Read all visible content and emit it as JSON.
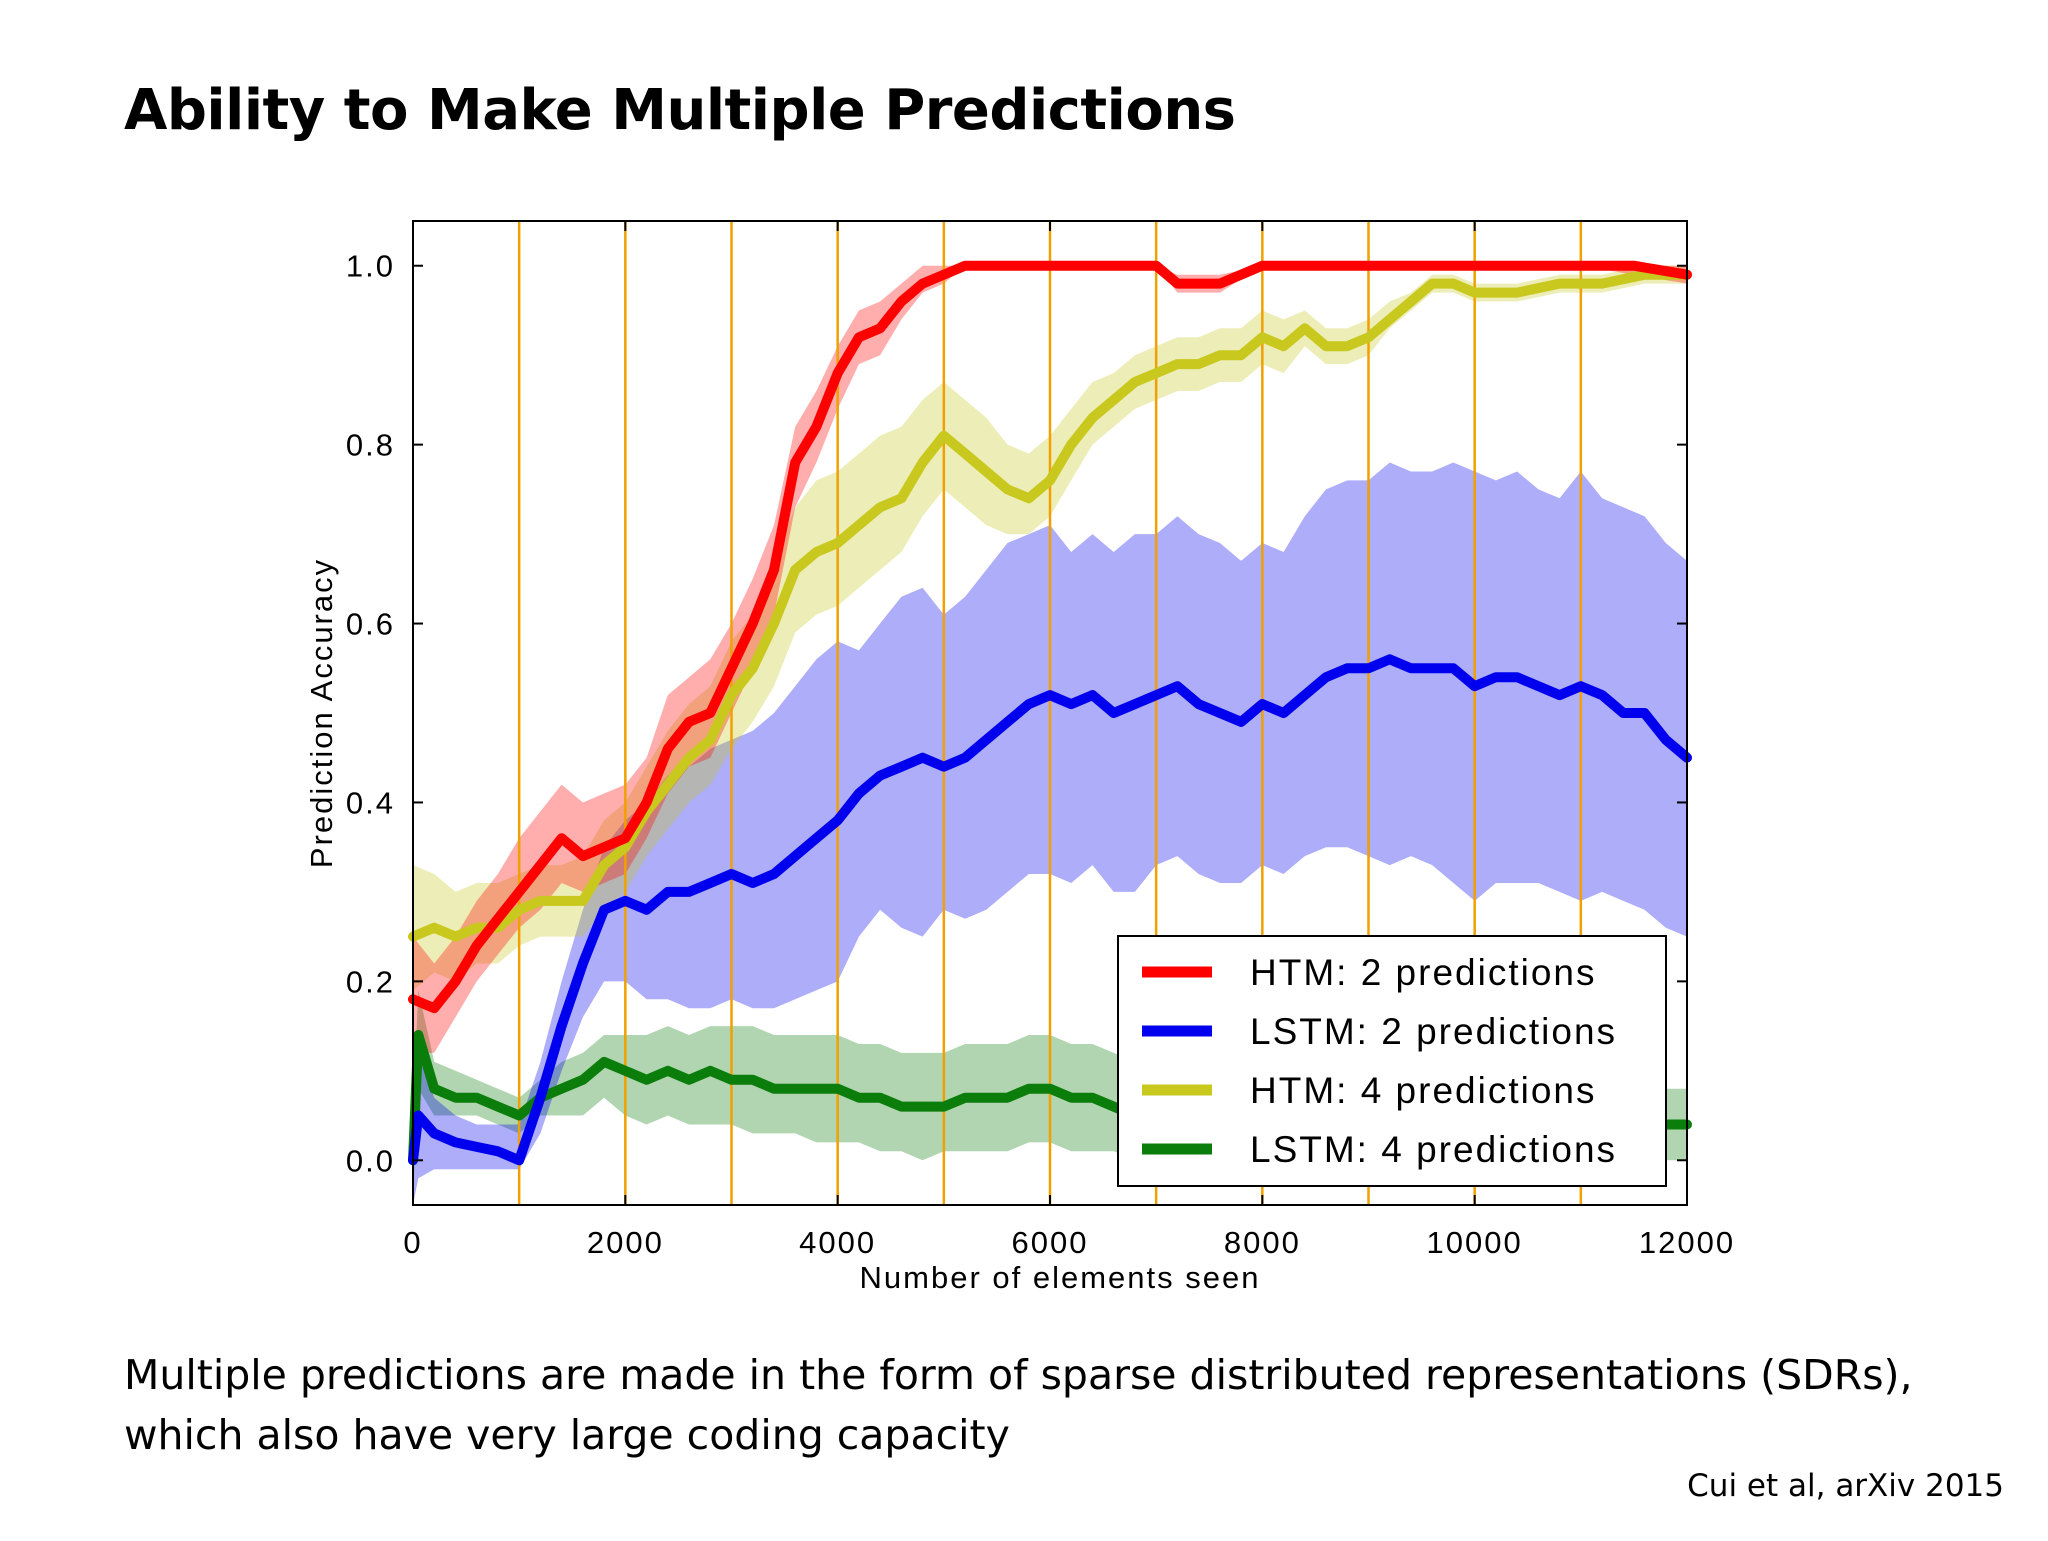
{
  "slide": {
    "title": "Ability to Make Multiple Predictions",
    "caption": "Multiple predictions are made in the form of sparse distributed representations (SDRs), which also have very large coding capacity",
    "citation": "Cui et al, arXiv 2015"
  },
  "colors": {
    "htm2": "#ff0000",
    "lstm2": "#0000ee",
    "htm4": "#c8c81e",
    "lstm4": "#0a7d0a",
    "divider": "#f0a000"
  },
  "chart_data": {
    "type": "line",
    "title": "",
    "xlabel": "Number of elements seen",
    "ylabel": "Prediction Accuracy",
    "xlim": [
      0,
      12000
    ],
    "ylim": [
      -0.05,
      1.05
    ],
    "xticks": [
      0,
      2000,
      4000,
      6000,
      8000,
      10000,
      12000
    ],
    "yticks": [
      0.0,
      0.2,
      0.4,
      0.6,
      0.8,
      1.0
    ],
    "xtick_labels": [
      "0",
      "2000",
      "4000",
      "6000",
      "8000",
      "10000",
      "12000"
    ],
    "ytick_labels": [
      "0.0",
      "0.2",
      "0.4",
      "0.6",
      "0.8",
      "1.0"
    ],
    "vertical_lines_x": [
      1000,
      2000,
      3000,
      4000,
      5000,
      6000,
      7000,
      8000,
      9000,
      10000,
      11000
    ],
    "grid": false,
    "legend_position": "lower-right",
    "series": [
      {
        "name": "HTM: 2 predictions",
        "color": "#ff0000",
        "x": [
          0,
          200,
          400,
          600,
          800,
          1000,
          1200,
          1400,
          1600,
          1800,
          2000,
          2200,
          2400,
          2600,
          2800,
          3000,
          3200,
          3400,
          3600,
          3800,
          4000,
          4200,
          4400,
          4600,
          4800,
          5000,
          5200,
          5400,
          6000,
          7000,
          7200,
          7600,
          8000,
          9000,
          10000,
          11000,
          11500,
          12000
        ],
        "y": [
          0.18,
          0.17,
          0.2,
          0.24,
          0.27,
          0.3,
          0.33,
          0.36,
          0.34,
          0.35,
          0.36,
          0.4,
          0.46,
          0.49,
          0.5,
          0.55,
          0.6,
          0.66,
          0.78,
          0.82,
          0.88,
          0.92,
          0.93,
          0.96,
          0.98,
          0.99,
          1.0,
          1.0,
          1.0,
          1.0,
          0.98,
          0.98,
          1.0,
          1.0,
          1.0,
          1.0,
          1.0,
          0.99
        ],
        "lower": [
          0.12,
          0.12,
          0.16,
          0.2,
          0.23,
          0.26,
          0.28,
          0.31,
          0.3,
          0.31,
          0.32,
          0.36,
          0.41,
          0.44,
          0.45,
          0.5,
          0.55,
          0.61,
          0.73,
          0.78,
          0.84,
          0.89,
          0.9,
          0.94,
          0.97,
          0.98,
          1.0,
          1.0,
          1.0,
          1.0,
          0.97,
          0.97,
          1.0,
          1.0,
          1.0,
          1.0,
          0.99,
          0.98
        ],
        "upper": [
          0.25,
          0.22,
          0.25,
          0.29,
          0.32,
          0.36,
          0.39,
          0.42,
          0.4,
          0.41,
          0.42,
          0.45,
          0.52,
          0.54,
          0.56,
          0.6,
          0.65,
          0.71,
          0.82,
          0.86,
          0.91,
          0.95,
          0.96,
          0.98,
          1.0,
          1.0,
          1.0,
          1.0,
          1.0,
          1.0,
          0.99,
          0.99,
          1.0,
          1.0,
          1.0,
          1.0,
          1.0,
          1.0
        ]
      },
      {
        "name": "LSTM: 2 predictions",
        "color": "#0000ee",
        "x": [
          0,
          50,
          200,
          400,
          600,
          800,
          1000,
          1200,
          1400,
          1600,
          1800,
          2000,
          2200,
          2400,
          2600,
          2800,
          3000,
          3200,
          3400,
          3600,
          3800,
          4000,
          4200,
          4400,
          4600,
          4800,
          5000,
          5200,
          5400,
          5600,
          5800,
          6000,
          6200,
          6400,
          6600,
          6800,
          7000,
          7200,
          7400,
          7600,
          7800,
          8000,
          8200,
          8400,
          8600,
          8800,
          9000,
          9200,
          9400,
          9600,
          9800,
          10000,
          10200,
          10400,
          10600,
          10800,
          11000,
          11200,
          11400,
          11600,
          11800,
          12000
        ],
        "y": [
          0.0,
          0.05,
          0.03,
          0.02,
          0.015,
          0.01,
          0.0,
          0.07,
          0.15,
          0.22,
          0.28,
          0.29,
          0.28,
          0.3,
          0.3,
          0.31,
          0.32,
          0.31,
          0.32,
          0.34,
          0.36,
          0.38,
          0.41,
          0.43,
          0.44,
          0.45,
          0.44,
          0.45,
          0.47,
          0.49,
          0.51,
          0.52,
          0.51,
          0.52,
          0.5,
          0.51,
          0.52,
          0.53,
          0.51,
          0.5,
          0.49,
          0.51,
          0.5,
          0.52,
          0.54,
          0.55,
          0.55,
          0.56,
          0.55,
          0.55,
          0.55,
          0.53,
          0.54,
          0.54,
          0.53,
          0.52,
          0.53,
          0.52,
          0.5,
          0.5,
          0.47,
          0.45
        ],
        "lower": [
          -0.05,
          -0.02,
          -0.01,
          -0.01,
          -0.01,
          -0.01,
          -0.01,
          0.03,
          0.1,
          0.16,
          0.2,
          0.2,
          0.18,
          0.18,
          0.17,
          0.17,
          0.18,
          0.17,
          0.17,
          0.18,
          0.19,
          0.2,
          0.25,
          0.28,
          0.26,
          0.25,
          0.28,
          0.27,
          0.28,
          0.3,
          0.32,
          0.32,
          0.31,
          0.33,
          0.3,
          0.3,
          0.33,
          0.34,
          0.32,
          0.31,
          0.31,
          0.33,
          0.32,
          0.34,
          0.35,
          0.35,
          0.34,
          0.33,
          0.34,
          0.33,
          0.31,
          0.29,
          0.31,
          0.31,
          0.31,
          0.3,
          0.29,
          0.3,
          0.29,
          0.28,
          0.26,
          0.25
        ],
        "upper": [
          0.1,
          0.12,
          0.07,
          0.05,
          0.04,
          0.04,
          0.04,
          0.11,
          0.2,
          0.28,
          0.35,
          0.38,
          0.4,
          0.43,
          0.44,
          0.46,
          0.47,
          0.48,
          0.5,
          0.53,
          0.56,
          0.58,
          0.57,
          0.6,
          0.63,
          0.64,
          0.61,
          0.63,
          0.66,
          0.69,
          0.7,
          0.71,
          0.68,
          0.7,
          0.68,
          0.7,
          0.7,
          0.72,
          0.7,
          0.69,
          0.67,
          0.69,
          0.68,
          0.72,
          0.75,
          0.76,
          0.76,
          0.78,
          0.77,
          0.77,
          0.78,
          0.77,
          0.76,
          0.77,
          0.75,
          0.74,
          0.77,
          0.74,
          0.73,
          0.72,
          0.69,
          0.67
        ]
      },
      {
        "name": "HTM: 4 predictions",
        "color": "#c8c81e",
        "x": [
          0,
          200,
          400,
          600,
          800,
          1000,
          1200,
          1400,
          1600,
          1800,
          2000,
          2200,
          2400,
          2600,
          2800,
          3000,
          3200,
          3400,
          3600,
          3800,
          4000,
          4200,
          4400,
          4600,
          4800,
          5000,
          5200,
          5400,
          5600,
          5800,
          6000,
          6200,
          6400,
          6600,
          6800,
          7000,
          7200,
          7400,
          7600,
          7800,
          8000,
          8200,
          8400,
          8600,
          8800,
          9000,
          9200,
          9400,
          9600,
          9800,
          10000,
          10400,
          10800,
          11200,
          11600,
          12000
        ],
        "y": [
          0.25,
          0.26,
          0.25,
          0.26,
          0.26,
          0.28,
          0.29,
          0.29,
          0.29,
          0.33,
          0.35,
          0.39,
          0.42,
          0.45,
          0.47,
          0.52,
          0.55,
          0.6,
          0.66,
          0.68,
          0.69,
          0.71,
          0.73,
          0.74,
          0.78,
          0.81,
          0.79,
          0.77,
          0.75,
          0.74,
          0.76,
          0.8,
          0.83,
          0.85,
          0.87,
          0.88,
          0.89,
          0.89,
          0.9,
          0.9,
          0.92,
          0.91,
          0.93,
          0.91,
          0.91,
          0.92,
          0.94,
          0.96,
          0.98,
          0.98,
          0.97,
          0.97,
          0.98,
          0.98,
          0.99,
          0.99
        ],
        "lower": [
          0.19,
          0.21,
          0.2,
          0.22,
          0.22,
          0.24,
          0.25,
          0.25,
          0.25,
          0.28,
          0.3,
          0.34,
          0.37,
          0.4,
          0.42,
          0.46,
          0.49,
          0.53,
          0.59,
          0.61,
          0.62,
          0.64,
          0.66,
          0.68,
          0.72,
          0.75,
          0.73,
          0.71,
          0.7,
          0.7,
          0.72,
          0.76,
          0.8,
          0.82,
          0.84,
          0.85,
          0.86,
          0.86,
          0.87,
          0.87,
          0.89,
          0.88,
          0.91,
          0.89,
          0.89,
          0.9,
          0.93,
          0.95,
          0.97,
          0.97,
          0.96,
          0.96,
          0.97,
          0.97,
          0.98,
          0.98
        ],
        "upper": [
          0.33,
          0.32,
          0.3,
          0.31,
          0.31,
          0.32,
          0.33,
          0.33,
          0.34,
          0.38,
          0.4,
          0.44,
          0.48,
          0.51,
          0.53,
          0.58,
          0.61,
          0.67,
          0.73,
          0.76,
          0.77,
          0.79,
          0.81,
          0.82,
          0.85,
          0.87,
          0.85,
          0.83,
          0.8,
          0.79,
          0.81,
          0.84,
          0.87,
          0.88,
          0.9,
          0.91,
          0.92,
          0.92,
          0.93,
          0.93,
          0.95,
          0.94,
          0.95,
          0.93,
          0.93,
          0.94,
          0.96,
          0.97,
          0.99,
          0.99,
          0.98,
          0.98,
          0.99,
          0.99,
          1.0,
          1.0
        ]
      },
      {
        "name": "LSTM: 4 predictions",
        "color": "#0a7d0a",
        "x": [
          0,
          50,
          200,
          400,
          600,
          800,
          1000,
          1200,
          1400,
          1600,
          1800,
          2000,
          2200,
          2400,
          2600,
          2800,
          3000,
          3200,
          3400,
          3600,
          3800,
          4000,
          4200,
          4400,
          4600,
          4800,
          5000,
          5200,
          5400,
          5600,
          5800,
          6000,
          6200,
          6400,
          6600,
          6800
        ],
        "y": [
          0.0,
          0.14,
          0.08,
          0.07,
          0.07,
          0.06,
          0.05,
          0.07,
          0.08,
          0.09,
          0.11,
          0.1,
          0.09,
          0.1,
          0.09,
          0.1,
          0.09,
          0.09,
          0.08,
          0.08,
          0.08,
          0.08,
          0.07,
          0.07,
          0.06,
          0.06,
          0.06,
          0.07,
          0.07,
          0.07,
          0.08,
          0.08,
          0.07,
          0.07,
          0.06,
          0.05
        ],
        "lower": [
          -0.04,
          0.08,
          0.05,
          0.05,
          0.05,
          0.04,
          0.03,
          0.05,
          0.05,
          0.05,
          0.07,
          0.05,
          0.04,
          0.05,
          0.04,
          0.04,
          0.04,
          0.03,
          0.03,
          0.03,
          0.02,
          0.02,
          0.02,
          0.01,
          0.01,
          0.0,
          0.01,
          0.01,
          0.01,
          0.01,
          0.02,
          0.02,
          0.01,
          0.01,
          0.01,
          0.0
        ],
        "upper": [
          0.05,
          0.19,
          0.11,
          0.1,
          0.09,
          0.08,
          0.07,
          0.09,
          0.11,
          0.12,
          0.14,
          0.14,
          0.14,
          0.15,
          0.14,
          0.15,
          0.15,
          0.15,
          0.14,
          0.14,
          0.14,
          0.14,
          0.13,
          0.13,
          0.12,
          0.12,
          0.12,
          0.13,
          0.13,
          0.13,
          0.14,
          0.14,
          0.13,
          0.13,
          0.12,
          0.11
        ]
      },
      {
        "name": "LSTM: 4 predictions (tail)",
        "series_of": "LSTM: 4 predictions",
        "color": "#0a7d0a",
        "x": [
          11600,
          12000
        ],
        "y": [
          0.04,
          0.04
        ],
        "lower": [
          0.0,
          0.0
        ],
        "upper": [
          0.08,
          0.08
        ]
      }
    ]
  }
}
